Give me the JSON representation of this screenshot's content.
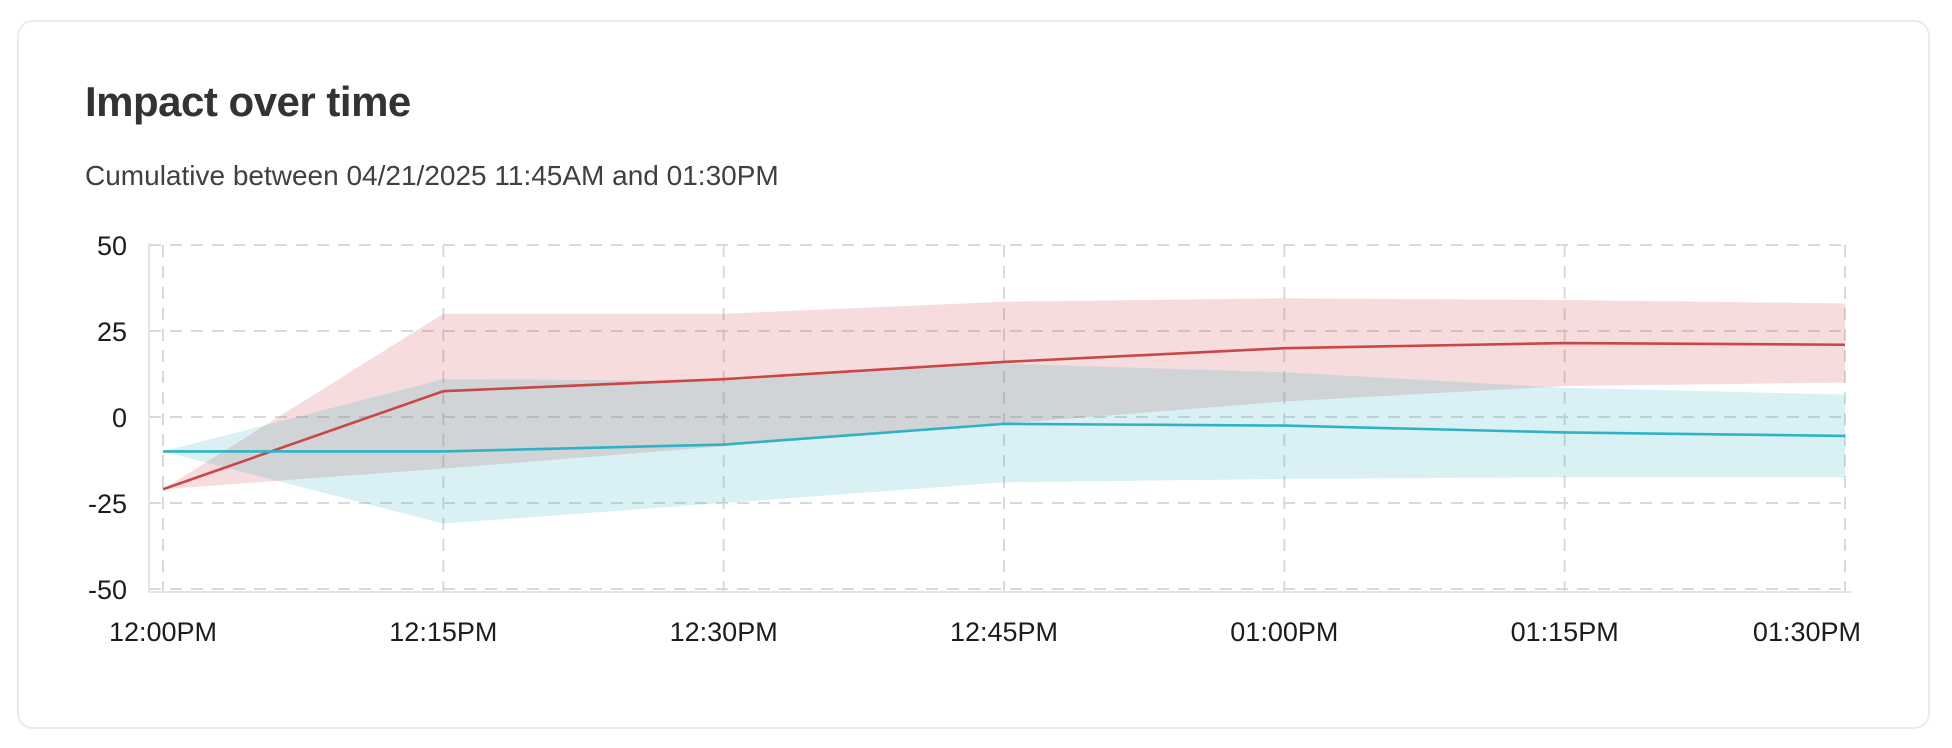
{
  "card": {
    "title": "Impact over time",
    "subtitle": "Cumulative between 04/21/2025 11:45AM and 01:30PM"
  },
  "chart_data": {
    "type": "area",
    "title": "Impact over time",
    "subtitle": "Cumulative between 04/21/2025 11:45AM and 01:30PM",
    "x_labels": [
      "12:00PM",
      "12:15PM",
      "12:30PM",
      "12:45PM",
      "01:00PM",
      "01:15PM",
      "01:30PM"
    ],
    "y_ticks": [
      50,
      25,
      0,
      -25,
      -50
    ],
    "ylim": [
      -50,
      50
    ],
    "grid": "dashed",
    "legend": "none",
    "series": [
      {
        "name": "red",
        "color": "#c94747",
        "band_color": "rgba(203,60,60,0.18)",
        "values": [
          -21,
          7.5,
          11,
          16,
          20,
          21.5,
          21
        ],
        "upper": [
          -21,
          30,
          30,
          33.5,
          34.5,
          34,
          33
        ],
        "lower": [
          -21,
          -15,
          -8.5,
          -2,
          4.5,
          9,
          10
        ]
      },
      {
        "name": "cyan",
        "color": "#2fb3c3",
        "band_color": "rgba(47,179,195,0.18)",
        "values": [
          -10,
          -10,
          -8,
          -2,
          -2.5,
          -4.5,
          -5.5
        ],
        "upper": [
          -10,
          11,
          10.5,
          15.5,
          13,
          8.5,
          6.5
        ],
        "lower": [
          -10,
          -31,
          -25,
          -19,
          -18,
          -17.5,
          -17.5
        ]
      }
    ]
  }
}
